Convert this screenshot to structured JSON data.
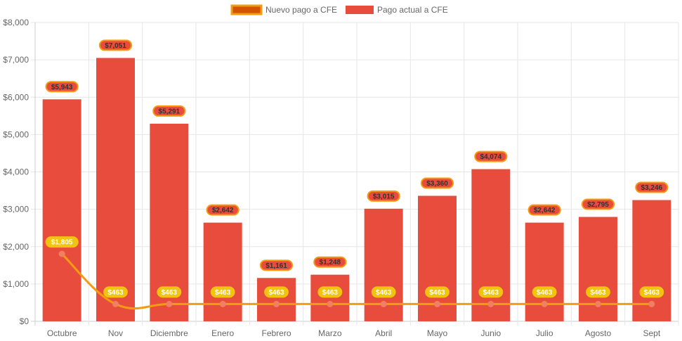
{
  "chart_data": {
    "type": "bar",
    "title": "",
    "xlabel": "",
    "ylabel": "",
    "ylim": [
      0,
      8000
    ],
    "yticks": [
      "$0",
      "$1,000",
      "$2,000",
      "$3,000",
      "$4,000",
      "$5,000",
      "$6,000",
      "$7,000",
      "$8,000"
    ],
    "categories": [
      "Octubre",
      "Nov",
      "Diciembre",
      "Enero",
      "Febrero",
      "Marzo",
      "Abril",
      "Mayo",
      "Junio",
      "Julio",
      "Agosto",
      "Sept"
    ],
    "legend_position": "top-center",
    "series": [
      {
        "name": "Nuevo pago a CFE",
        "type": "line",
        "color": "#f39c12",
        "values": [
          1805,
          463,
          463,
          463,
          463,
          463,
          463,
          463,
          463,
          463,
          463,
          463
        ],
        "labels": [
          "$1,805",
          "$463",
          "$463",
          "$463",
          "$463",
          "$463",
          "$463",
          "$463",
          "$463",
          "$463",
          "$463",
          "$463"
        ]
      },
      {
        "name": "Pago actual a CFE",
        "type": "bar",
        "color": "#e74c3c",
        "values": [
          5943,
          7051,
          5291,
          2642,
          1161,
          1248,
          3015,
          3360,
          4074,
          2642,
          2795,
          3246
        ],
        "labels": [
          "$5,943",
          "$7,051",
          "$5,291",
          "$2,642",
          "$1,161",
          "$1,248",
          "$3,015",
          "$3,360",
          "$4,074",
          "$2,642",
          "$2,795",
          "$3,246"
        ]
      }
    ]
  },
  "legend": {
    "line_label": "Nuevo pago a CFE",
    "bar_label": "Pago actual a CFE",
    "line_fill": "#d35400",
    "line_border": "#f39c12",
    "bar_fill": "#e74c3c"
  },
  "colors": {
    "grid": "#e6e6e6",
    "axis": "#cccccc",
    "tick_text": "#666666",
    "bar_label_bg": "#e74c3c",
    "bar_label_border": "#f39c12",
    "bar_label_text": "#333333",
    "line_label_bg": "#f1c40f",
    "line_label_text": "#ffffff",
    "point_fill": "#f08060"
  }
}
